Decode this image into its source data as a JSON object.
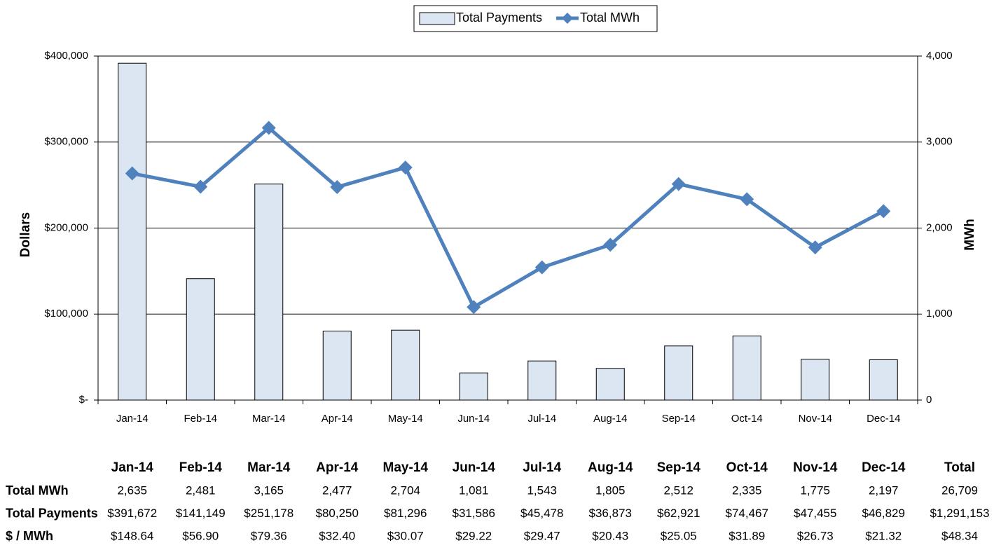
{
  "chart_data": {
    "type": "bar-line",
    "categories": [
      "Jan-14",
      "Feb-14",
      "Mar-14",
      "Apr-14",
      "May-14",
      "Jun-14",
      "Jul-14",
      "Aug-14",
      "Sep-14",
      "Oct-14",
      "Nov-14",
      "Dec-14"
    ],
    "series": [
      {
        "name": "Total Payments",
        "type": "bar",
        "color": "#dce6f2",
        "values": [
          391672,
          141149,
          251178,
          80250,
          81296,
          31586,
          45478,
          36873,
          62921,
          74467,
          47455,
          46829
        ]
      },
      {
        "name": "Total MWh",
        "type": "line",
        "axis": "y2",
        "color": "#4f81bd",
        "values": [
          2635,
          2481,
          3165,
          2477,
          2704,
          1081,
          1543,
          1805,
          2512,
          2335,
          1775,
          2197
        ]
      }
    ],
    "ylabel": "Dollars",
    "y2label": "MWh",
    "ylim": [
      0,
      400000
    ],
    "yticks": [
      {
        "value": 0,
        "label": "$-"
      },
      {
        "value": 100000,
        "label": "$100,000"
      },
      {
        "value": 200000,
        "label": "$200,000"
      },
      {
        "value": 300000,
        "label": "$300,000"
      },
      {
        "value": 400000,
        "label": "$400,000"
      }
    ],
    "y2lim": [
      0,
      4000
    ],
    "y2ticks": [
      0,
      {
        "value": 1000,
        "label": "1,000"
      },
      {
        "value": 2000,
        "label": "2,000"
      },
      {
        "value": 3000,
        "label": "3,000"
      },
      {
        "value": 4000,
        "label": "4,000"
      }
    ],
    "grid": true,
    "legend": "top"
  },
  "table": {
    "header": [
      "Jan-14",
      "Feb-14",
      "Mar-14",
      "Apr-14",
      "May-14",
      "Jun-14",
      "Jul-14",
      "Aug-14",
      "Sep-14",
      "Oct-14",
      "Nov-14",
      "Dec-14",
      "Total"
    ],
    "rows": [
      [
        "Total MWh",
        "2,635",
        "2,481",
        "3,165",
        "2,477",
        "2,704",
        "1,081",
        "1,543",
        "1,805",
        "2,512",
        "2,335",
        "1,775",
        "2,197",
        "26,709"
      ],
      [
        "Total Payments",
        "$391,672",
        "$141,149",
        "$251,178",
        "$80,250",
        "$81,296",
        "$31,586",
        "$45,478",
        "$36,873",
        "$62,921",
        "$74,467",
        "$47,455",
        "$46,829",
        "$1,291,153"
      ],
      [
        "$ / MWh",
        "$148.64",
        "$56.90",
        "$79.36",
        "$32.40",
        "$30.07",
        "$29.22",
        "$29.47",
        "$20.43",
        "$25.05",
        "$31.89",
        "$26.73",
        "$21.32",
        "$48.34"
      ]
    ]
  }
}
